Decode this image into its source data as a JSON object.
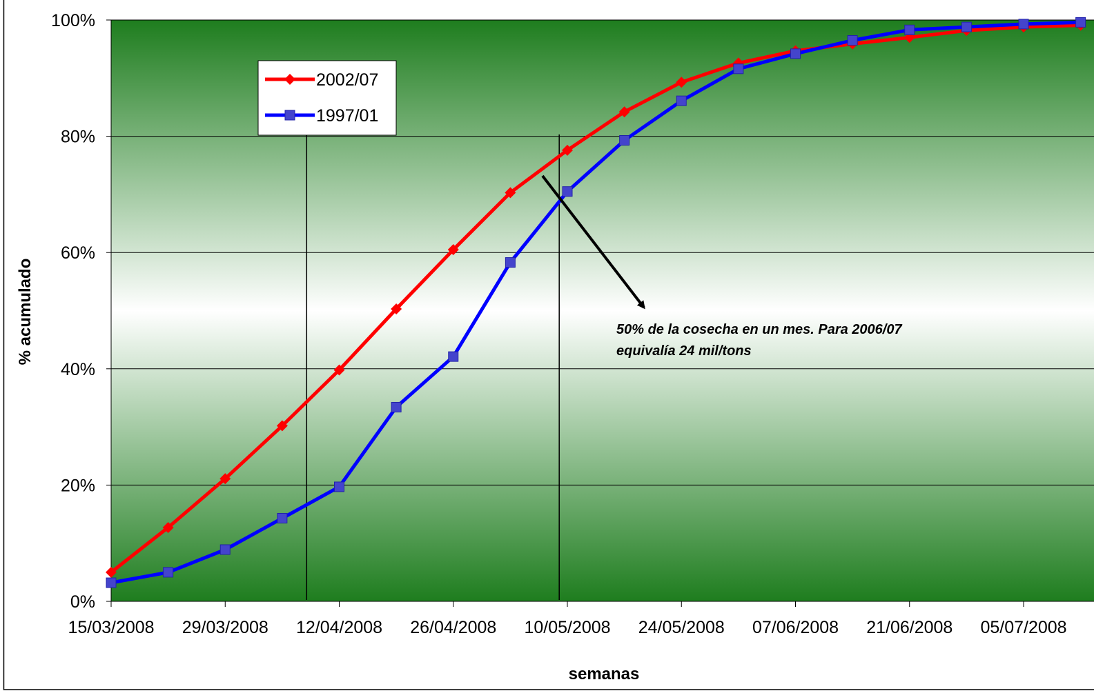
{
  "chart_data": {
    "type": "line",
    "title": "",
    "xlabel": "semanas",
    "ylabel": "% acumulado",
    "x_tick_labels": [
      "15/03/2008",
      "29/03/2008",
      "12/04/2008",
      "26/04/2008",
      "10/05/2008",
      "24/05/2008",
      "07/06/2008",
      "21/06/2008",
      "05/07/2008"
    ],
    "y_tick_labels": [
      "0%",
      "20%",
      "40%",
      "60%",
      "80%",
      "100%"
    ],
    "ylim": [
      0,
      100
    ],
    "grid": true,
    "legend_position": "top-left",
    "x_weeks": [
      "15/03/2008",
      "22/03/2008",
      "29/03/2008",
      "05/04/2008",
      "12/04/2008",
      "19/04/2008",
      "26/04/2008",
      "03/05/2008",
      "10/05/2008",
      "17/05/2008",
      "24/05/2008",
      "31/05/2008",
      "07/06/2008",
      "14/06/2008",
      "21/06/2008",
      "28/06/2008",
      "05/07/2008",
      "12/07/2008"
    ],
    "series": [
      {
        "name": "2002/07",
        "color": "#ff0000",
        "marker": "diamond",
        "values": [
          5,
          12.7,
          21.1,
          30.2,
          39.8,
          50.3,
          60.5,
          70.3,
          77.6,
          84.2,
          89.3,
          92.6,
          94.7,
          95.9,
          97.0,
          98.2,
          98.8,
          99.1
        ]
      },
      {
        "name": "1997/01",
        "color": "#0000ff",
        "marker": "square",
        "values": [
          3.2,
          5.0,
          8.9,
          14.3,
          19.7,
          33.4,
          42.1,
          58.3,
          70.5,
          79.3,
          86.1,
          91.6,
          94.2,
          96.5,
          98.3,
          98.8,
          99.3,
          99.6
        ]
      }
    ],
    "annotation": {
      "line1": "50% de la cosecha en un mes. Para 2006/07",
      "line2": "equivalía 24 mil/tons"
    },
    "reference_lines": [
      "08/04/2008",
      "09/05/2008"
    ]
  }
}
